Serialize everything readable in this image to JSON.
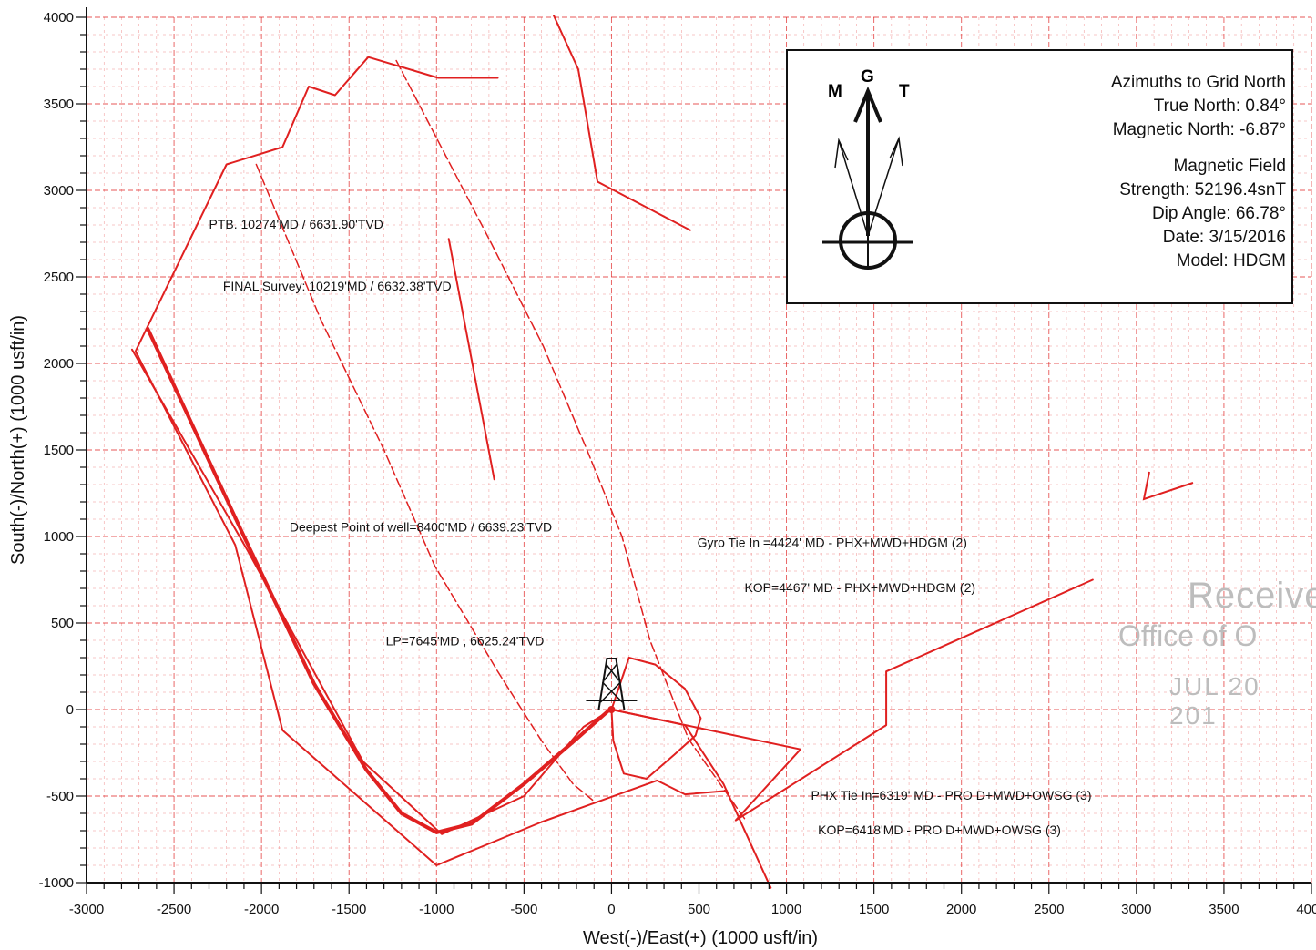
{
  "chart_data": {
    "type": "line",
    "xlabel": "West(-)/East(+) (1000 usft/in)",
    "ylabel": "South(-)/North(+) (1000 usft/in)",
    "xlim": [
      -3000,
      4000
    ],
    "ylim": [
      -1000,
      4000
    ],
    "x_ticks": [
      "-3000",
      "-2500",
      "-2000",
      "-1500",
      "-1000",
      "-500",
      "0",
      "500",
      "1000",
      "1500",
      "2000",
      "2500",
      "3000",
      "3500",
      "4000"
    ],
    "y_ticks": [
      "4000",
      "3500",
      "3000",
      "2500",
      "2000",
      "1500",
      "1000",
      "500",
      "0",
      "-500",
      "-1000"
    ],
    "grid": true,
    "line_color": "#e02020",
    "series": [
      {
        "id": "outline-north-loop",
        "dash": false,
        "width": 2,
        "x": [
          -650,
          -990,
          -1390,
          -1580,
          -1730,
          -1880,
          -2200,
          -2720,
          -2150,
          -1880,
          -1000,
          -400,
          260,
          420,
          660
        ],
        "y": [
          3650,
          3650,
          3770,
          3550,
          3600,
          3250,
          3150,
          2070,
          950,
          -120,
          -900,
          -650,
          -410,
          -490,
          -470
        ]
      },
      {
        "id": "east-line-upper",
        "dash": false,
        "width": 2,
        "x": [
          -330,
          -190,
          -80,
          450
        ],
        "y": [
          4010,
          3700,
          3050,
          2770
        ]
      },
      {
        "id": "inner-dashed",
        "dash": true,
        "width": 1.5,
        "x": [
          -2030,
          -1660,
          -1300,
          -1010,
          -650,
          -400,
          -220,
          -100
        ],
        "y": [
          3150,
          2250,
          1500,
          830,
          220,
          -180,
          -430,
          -530
        ]
      },
      {
        "id": "short-line",
        "dash": false,
        "width": 2,
        "x": [
          -930,
          -670
        ],
        "y": [
          2720,
          1330
        ]
      },
      {
        "id": "long-dashed-east",
        "dash": true,
        "width": 1.5,
        "x": [
          -1230,
          -690,
          -390,
          -140,
          60,
          220,
          440,
          760
        ],
        "y": [
          3750,
          2700,
          2100,
          1500,
          1000,
          400,
          -170,
          -630
        ]
      },
      {
        "id": "west-long-line",
        "dash": false,
        "width": 2,
        "x": [
          -2740,
          -2080,
          -1420,
          -970,
          -500,
          -160,
          0
        ],
        "y": [
          2080,
          920,
          -300,
          -720,
          -500,
          -100,
          0
        ]
      },
      {
        "id": "main-wellpath",
        "dash": false,
        "width": 4,
        "x": [
          -2650,
          -2100,
          -1700,
          -1400,
          -1200,
          -1000,
          -800,
          -500,
          -200,
          -10
        ],
        "y": [
          2200,
          1000,
          150,
          -350,
          -600,
          -710,
          -660,
          -430,
          -170,
          0
        ]
      },
      {
        "id": "loop-around-rig",
        "dash": false,
        "width": 2,
        "x": [
          0,
          10,
          70,
          200,
          360,
          480,
          510,
          420,
          250,
          100,
          0
        ],
        "y": [
          0,
          -180,
          -370,
          -400,
          -260,
          -150,
          -50,
          120,
          260,
          300,
          0
        ]
      },
      {
        "id": "east-to-2700",
        "dash": false,
        "width": 2,
        "x": [
          0,
          1080,
          710,
          1570,
          1570,
          2750
        ],
        "y": [
          0,
          -230,
          -640,
          -90,
          220,
          750
        ]
      },
      {
        "id": "south-leg",
        "dash": false,
        "width": 2,
        "x": [
          0,
          420,
          640,
          910
        ],
        "y": [
          0,
          -90,
          -430,
          -1030
        ]
      }
    ],
    "annotations": [
      {
        "text": "PTB. 10274'MD / 6631.90'TVD",
        "x": -2300,
        "y": 2780
      },
      {
        "text": "FINAL Survey: 10219'MD / 6632.38'TVD",
        "x": -2220,
        "y": 2420
      },
      {
        "text": "Deepest Point of well=8400'MD / 6639.23'TVD",
        "x": -1840,
        "y": 1030
      },
      {
        "text": "Gyro Tie In =4424' MD - PHX+MWD+HDGM (2)",
        "x": 490,
        "y": 940
      },
      {
        "text": "KOP=4467' MD - PHX+MWD+HDGM (2)",
        "x": 760,
        "y": 680
      },
      {
        "text": "LP=7645'MD , 6625.24'TVD",
        "x": -1290,
        "y": 370
      },
      {
        "text": "PHX Tie In=6319' MD -  PRO D+MWD+OWSG (3)",
        "x": 1140,
        "y": -520
      },
      {
        "text": "KOP=6418'MD - PRO D+MWD+OWSG (3)",
        "x": 1180,
        "y": -720
      }
    ]
  },
  "legend": {
    "compass_labels": {
      "m": "M",
      "g": "G",
      "t": "T"
    },
    "lines": [
      "Azimuths to Grid North",
      "True North: 0.84°",
      "Magnetic North: -6.87°",
      "",
      "Magnetic Field",
      "Strength: 52196.4snT",
      "Dip Angle: 66.78°",
      "Date: 3/15/2016",
      "Model: HDGM"
    ]
  },
  "stamp": {
    "line1": "Receive",
    "line2": "Office of O",
    "line3": "JUL 20 201"
  }
}
